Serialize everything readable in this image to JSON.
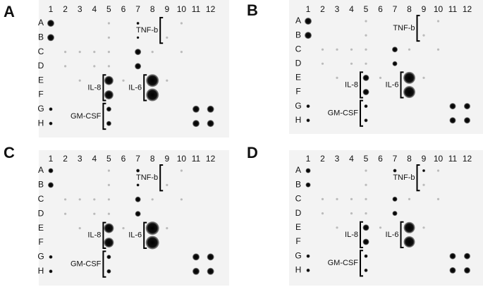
{
  "panels": [
    {
      "letter": "A",
      "columns": [
        "1",
        "2",
        "3",
        "4",
        "5",
        "6",
        "7",
        "8",
        "9",
        "10",
        "11",
        "12"
      ],
      "rows": [
        "A",
        "B",
        "C",
        "D",
        "E",
        "F",
        "G",
        "H"
      ],
      "labels": [
        "TNF-b",
        "IL-8",
        "IL-6",
        "GM-CSF"
      ]
    },
    {
      "letter": "B",
      "columns": [
        "1",
        "2",
        "3",
        "4",
        "5",
        "6",
        "7",
        "8",
        "9",
        "10",
        "11",
        "12"
      ],
      "rows": [
        "A",
        "B",
        "C",
        "D",
        "E",
        "F",
        "G",
        "H"
      ],
      "labels": [
        "TNF-b",
        "IL-8",
        "IL-6",
        "GM-CSF"
      ]
    },
    {
      "letter": "C",
      "columns": [
        "1",
        "2",
        "3",
        "4",
        "5",
        "6",
        "7",
        "8",
        "9",
        "10",
        "11",
        "12"
      ],
      "rows": [
        "A",
        "B",
        "C",
        "D",
        "E",
        "F",
        "G",
        "H"
      ],
      "labels": [
        "TNF-b",
        "IL-8",
        "IL-6",
        "GM-CSF"
      ]
    },
    {
      "letter": "D",
      "columns": [
        "1",
        "2",
        "3",
        "4",
        "5",
        "6",
        "7",
        "8",
        "9",
        "10",
        "11",
        "12"
      ],
      "rows": [
        "A",
        "B",
        "C",
        "D",
        "E",
        "F",
        "G",
        "H"
      ],
      "labels": [
        "TNF-b",
        "IL-8",
        "IL-6",
        "GM-CSF"
      ]
    }
  ]
}
